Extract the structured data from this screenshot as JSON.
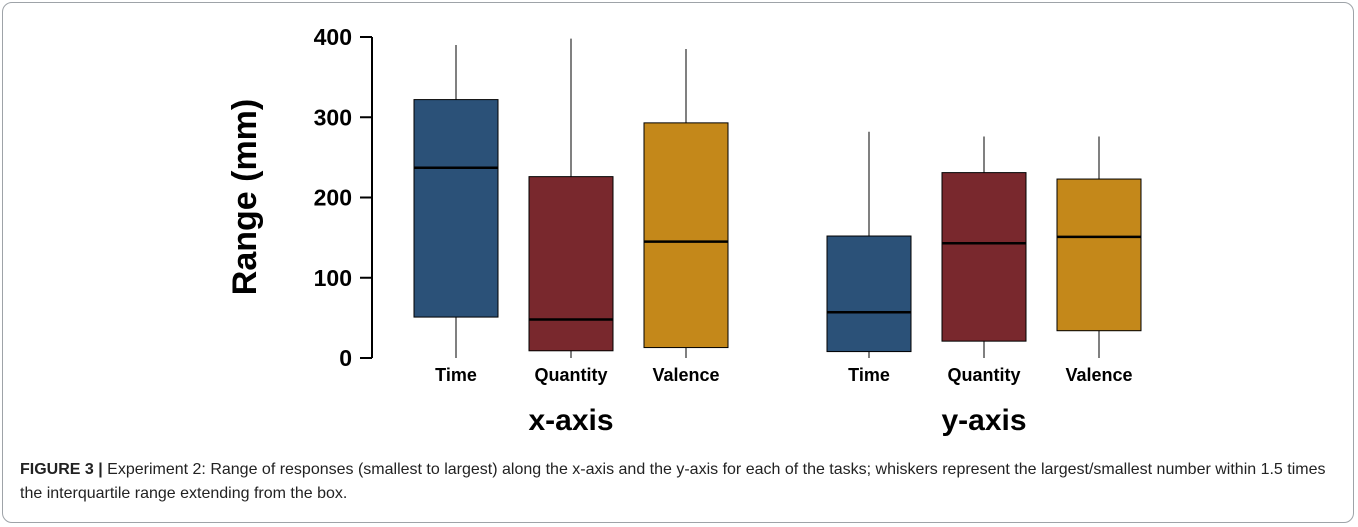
{
  "chart_data": {
    "type": "box",
    "ylabel": "Range (mm)",
    "ylim": [
      0,
      400
    ],
    "yticks": [
      0,
      100,
      200,
      300,
      400
    ],
    "groups": [
      {
        "name": "x-axis",
        "boxes": [
          {
            "category": "Time",
            "color": "#2b5178",
            "whisker_low": 0,
            "q1": 51,
            "median": 237,
            "q3": 322,
            "whisker_high": 390
          },
          {
            "category": "Quantity",
            "color": "#79282d",
            "whisker_low": 0,
            "q1": 9,
            "median": 48,
            "q3": 226,
            "whisker_high": 398
          },
          {
            "category": "Valence",
            "color": "#c4881a",
            "whisker_low": 0,
            "q1": 13,
            "median": 145,
            "q3": 293,
            "whisker_high": 385
          }
        ]
      },
      {
        "name": "y-axis",
        "boxes": [
          {
            "category": "Time",
            "color": "#2b5178",
            "whisker_low": 0,
            "q1": 8,
            "median": 57,
            "q3": 152,
            "whisker_high": 282
          },
          {
            "category": "Quantity",
            "color": "#79282d",
            "whisker_low": 0,
            "q1": 21,
            "median": 143,
            "q3": 231,
            "whisker_high": 276
          },
          {
            "category": "Valence",
            "color": "#c4881a",
            "whisker_low": 0,
            "q1": 34,
            "median": 151,
            "q3": 223,
            "whisker_high": 276
          }
        ]
      }
    ]
  },
  "caption": {
    "label": "FIGURE 3 |",
    "text": " Experiment 2: Range of responses (smallest to largest) along the x-axis and the y-axis for each of the tasks; whiskers represent the largest/smallest number within 1.5 times the interquartile range extending from the box."
  }
}
